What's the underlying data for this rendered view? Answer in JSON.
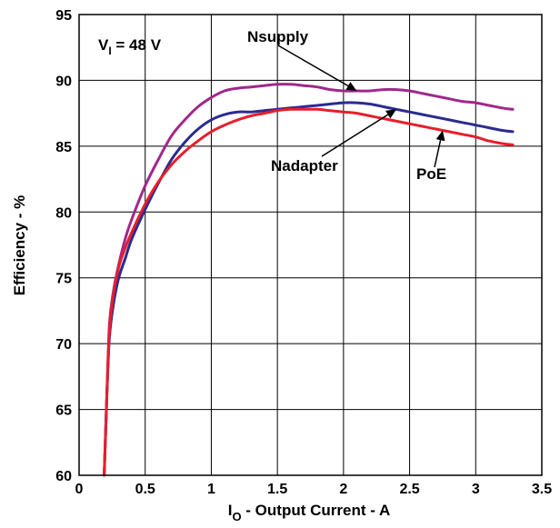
{
  "chart_data": {
    "type": "line",
    "xlabel": {
      "main": "I",
      "sub": "O",
      "rest": " - Output Current - A"
    },
    "ylabel": "Efficiency - %",
    "xlim": [
      0,
      3.5
    ],
    "ylim": [
      60,
      95
    ],
    "xticks": [
      "0",
      "0.5",
      "1",
      "1.5",
      "2",
      "2.5",
      "3",
      "3.5"
    ],
    "yticks": [
      "60",
      "65",
      "70",
      "75",
      "80",
      "85",
      "90",
      "95"
    ],
    "grid": true,
    "condition": {
      "main": "V",
      "sub": "I",
      "rest": " = 48 V"
    },
    "series": [
      {
        "name": "Nsupply",
        "color": "#a0288c",
        "x": [
          0.19,
          0.21,
          0.23,
          0.26,
          0.3,
          0.35,
          0.4,
          0.5,
          0.6,
          0.7,
          0.8,
          0.9,
          1.0,
          1.1,
          1.2,
          1.3,
          1.4,
          1.5,
          1.6,
          1.7,
          1.8,
          1.9,
          2.0,
          2.1,
          2.2,
          2.3,
          2.4,
          2.5,
          2.6,
          2.7,
          2.8,
          2.9,
          3.0,
          3.1,
          3.2,
          3.28
        ],
        "y": [
          60.0,
          66.0,
          71.5,
          74.0,
          76.0,
          78.0,
          79.5,
          82.0,
          84.0,
          85.8,
          87.0,
          88.0,
          88.7,
          89.2,
          89.4,
          89.5,
          89.6,
          89.7,
          89.7,
          89.6,
          89.5,
          89.3,
          89.2,
          89.2,
          89.2,
          89.3,
          89.3,
          89.2,
          89.0,
          88.8,
          88.6,
          88.4,
          88.3,
          88.1,
          87.9,
          87.8
        ]
      },
      {
        "name": "Nadapter",
        "color": "#2b2b8f",
        "x": [
          0.19,
          0.21,
          0.23,
          0.26,
          0.3,
          0.35,
          0.4,
          0.5,
          0.6,
          0.7,
          0.8,
          0.9,
          1.0,
          1.1,
          1.2,
          1.3,
          1.4,
          1.5,
          1.6,
          1.7,
          1.8,
          1.9,
          2.0,
          2.1,
          2.2,
          2.3,
          2.4,
          2.5,
          2.6,
          2.7,
          2.8,
          2.9,
          3.0,
          3.1,
          3.2,
          3.28
        ],
        "y": [
          60.0,
          66.0,
          70.5,
          73.0,
          75.0,
          76.5,
          78.0,
          80.2,
          82.2,
          84.0,
          85.3,
          86.3,
          87.0,
          87.4,
          87.6,
          87.6,
          87.7,
          87.8,
          87.9,
          88.0,
          88.1,
          88.2,
          88.3,
          88.3,
          88.2,
          88.0,
          87.8,
          87.6,
          87.4,
          87.2,
          87.0,
          86.8,
          86.6,
          86.4,
          86.2,
          86.1
        ]
      },
      {
        "name": "PoE",
        "color": "#e81e2b",
        "x": [
          0.19,
          0.21,
          0.23,
          0.26,
          0.3,
          0.35,
          0.4,
          0.5,
          0.6,
          0.7,
          0.8,
          0.9,
          1.0,
          1.1,
          1.2,
          1.3,
          1.4,
          1.5,
          1.6,
          1.7,
          1.8,
          1.9,
          2.0,
          2.1,
          2.2,
          2.3,
          2.4,
          2.5,
          2.6,
          2.7,
          2.8,
          2.9,
          3.0,
          3.1,
          3.2,
          3.28
        ],
        "y": [
          60.0,
          66.0,
          71.0,
          73.8,
          75.8,
          77.3,
          78.5,
          80.6,
          82.3,
          83.6,
          84.6,
          85.4,
          86.1,
          86.6,
          87.0,
          87.3,
          87.5,
          87.7,
          87.8,
          87.8,
          87.8,
          87.7,
          87.6,
          87.5,
          87.3,
          87.1,
          86.9,
          86.7,
          86.5,
          86.3,
          86.1,
          85.9,
          85.7,
          85.4,
          85.2,
          85.1
        ]
      }
    ],
    "annotations": [
      {
        "text": "Nsupply",
        "series": "Nsupply",
        "x": 2.1,
        "y": 89.2
      },
      {
        "text": "Nadapter",
        "series": "Nadapter",
        "x": 2.4,
        "y": 87.8
      },
      {
        "text": "PoE",
        "series": "PoE",
        "x": 2.75,
        "y": 86.2
      }
    ]
  }
}
